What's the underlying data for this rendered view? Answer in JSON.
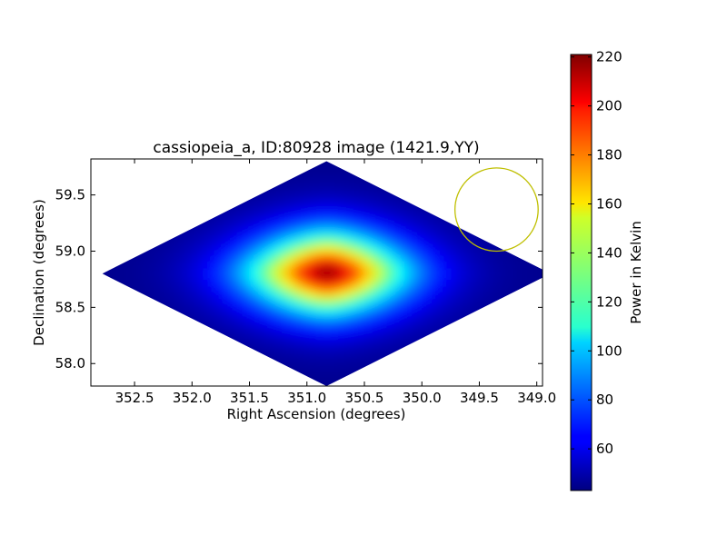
{
  "chart_data": {
    "type": "heatmap",
    "title": "cassiopeia_a, ID:80928 image (1421.9,YY)",
    "xlabel": "Right Ascension (degrees)",
    "ylabel": "Declination (degrees)",
    "xlim": [
      352.88,
      348.95
    ],
    "ylim": [
      57.8,
      59.82
    ],
    "x_inverted": true,
    "x_ticks": [
      352.5,
      352.0,
      351.5,
      351.0,
      350.5,
      350.0,
      349.5,
      349.0
    ],
    "x_tick_labels": [
      "352.5",
      "352.0",
      "351.5",
      "351.0",
      "350.5",
      "350.0",
      "349.5",
      "349.0"
    ],
    "y_ticks": [
      58.0,
      58.5,
      59.0,
      59.5
    ],
    "y_tick_labels": [
      "58.0",
      "58.5",
      "59.0",
      "59.5"
    ],
    "field": {
      "center_ra": 350.83,
      "center_dec": 58.8,
      "ra_halfwidth": 1.95,
      "dec_halfheight": 1.0
    },
    "peak": {
      "ra": 350.83,
      "dec": 58.81,
      "value": 220
    },
    "background_value": 45,
    "beam_circle": {
      "ra": 349.35,
      "dec": 59.37,
      "radius_deg": 0.37,
      "color": "#bfbf00"
    },
    "colorbar": {
      "label": "Power in Kelvin",
      "min": 43,
      "max": 221,
      "ticks": [
        60,
        80,
        100,
        120,
        140,
        160,
        180,
        200,
        220
      ],
      "tick_labels": [
        "60",
        "80",
        "100",
        "120",
        "140",
        "160",
        "180",
        "200",
        "220"
      ],
      "colormap": "jet"
    },
    "grid": false,
    "legend": "none"
  }
}
